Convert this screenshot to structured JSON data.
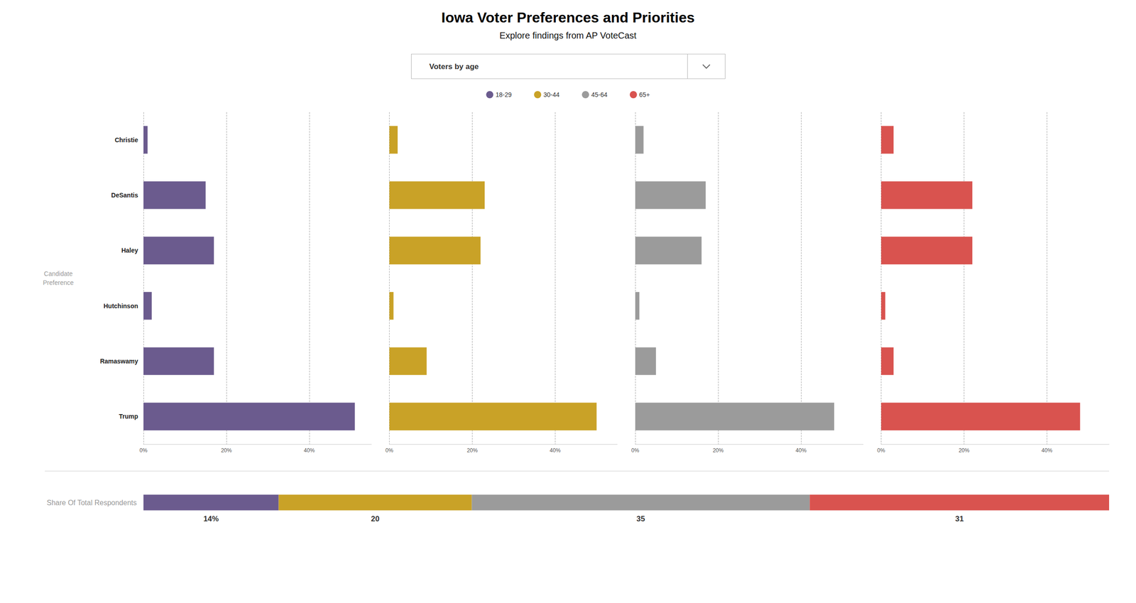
{
  "chart_data": [
    {
      "type": "bar",
      "orientation": "horizontal",
      "title": "Iowa Voter Preferences and Priorities",
      "subtitle": "Explore findings from AP VoteCast",
      "annotations": [
        "Voters by age"
      ],
      "ylabel": "Candidate\nPreference",
      "categories": [
        "Christie",
        "DeSantis",
        "Haley",
        "Hutchinson",
        "Ramaswamy",
        "Trump"
      ],
      "series": [
        {
          "name": "18-29",
          "color": "#6b5b8e",
          "values": [
            1,
            15,
            17,
            2,
            17,
            51
          ]
        },
        {
          "name": "30-44",
          "color": "#c9a227",
          "values": [
            2,
            23,
            22,
            1,
            9,
            50
          ]
        },
        {
          "name": "45-64",
          "color": "#9b9b9b",
          "values": [
            2,
            17,
            16,
            1,
            5,
            48
          ]
        },
        {
          "name": "65+",
          "color": "#d9534f",
          "values": [
            3,
            22,
            22,
            1,
            3,
            48
          ]
        }
      ],
      "xlim": [
        0,
        55
      ],
      "xticks": [
        {
          "value": 0,
          "label": "0%"
        },
        {
          "value": 20,
          "label": "20%"
        },
        {
          "value": 40,
          "label": "40%"
        }
      ],
      "grid": true,
      "legend": "top"
    },
    {
      "type": "bar",
      "orientation": "horizontal",
      "stacked": true,
      "ylabel": "Share Of Total Respondents",
      "categories": [
        null
      ],
      "series": [
        {
          "name": "18-29",
          "color": "#6b5b8e",
          "values": [
            14
          ],
          "value_labels": [
            "14%"
          ]
        },
        {
          "name": "30-44",
          "color": "#c9a227",
          "values": [
            20
          ],
          "value_labels": [
            "20"
          ]
        },
        {
          "name": "45-64",
          "color": "#9b9b9b",
          "values": [
            35
          ],
          "value_labels": [
            "35"
          ]
        },
        {
          "name": "65+",
          "color": "#d9534f",
          "values": [
            31
          ],
          "value_labels": [
            "31"
          ]
        }
      ],
      "xlim": [
        0,
        100
      ],
      "data_labels": true,
      "tick_labels": false,
      "grid": false
    }
  ]
}
